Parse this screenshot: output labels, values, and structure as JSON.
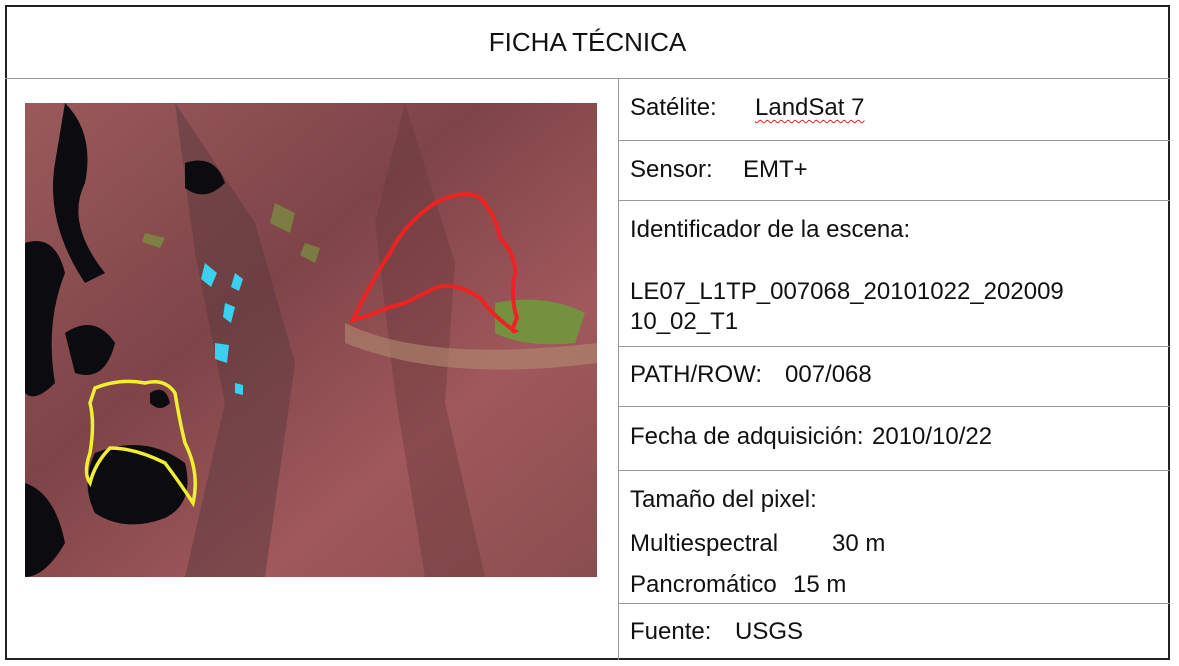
{
  "header": {
    "title": "FICHA TÉCNICA"
  },
  "table": {
    "satelite": {
      "label": "Satélite:",
      "value": "LandSat 7"
    },
    "sensor": {
      "label": "Sensor:",
      "value": "EMT+"
    },
    "escena": {
      "label": "Identificador de la escena:",
      "value": "LE07_L1TP_007068_20101022_20200910_02_T1"
    },
    "path_row": {
      "label": "PATH/ROW:",
      "value": "007/068"
    },
    "fecha": {
      "label": "Fecha de adquisición:",
      "value": "2010/10/22"
    },
    "pixel": {
      "label": "Tamaño del pixel:",
      "multiespectral": {
        "label": "Multiespectral",
        "value": "30 m"
      },
      "pancromatico": {
        "label": "Pancromático",
        "value": "15 m"
      }
    },
    "fuente": {
      "label": "Fuente:",
      "value": "USGS"
    }
  }
}
